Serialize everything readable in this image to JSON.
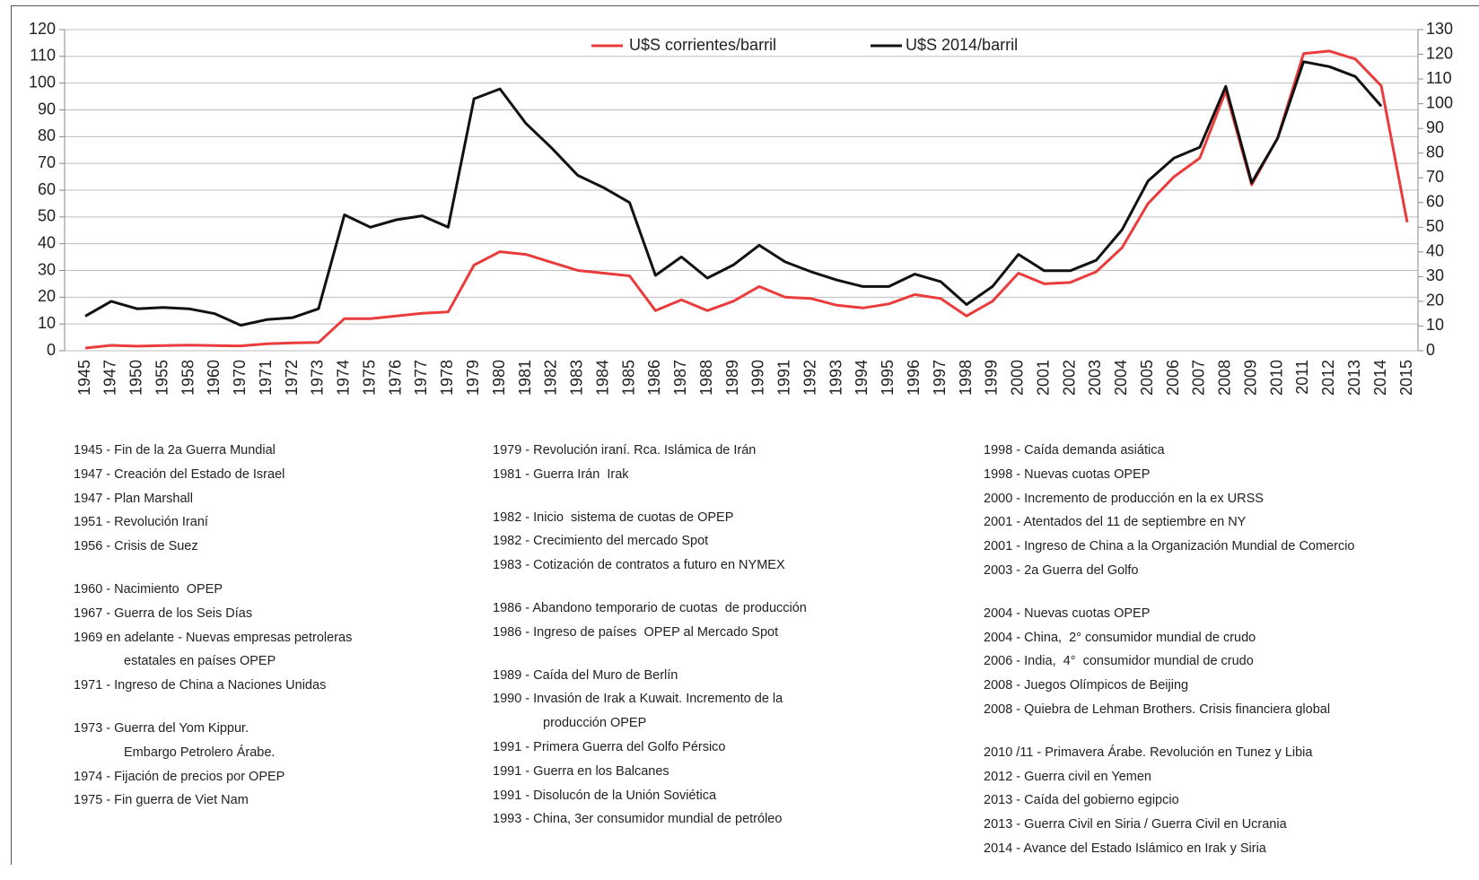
{
  "chart_data": {
    "type": "line",
    "categories": [
      "1945",
      "1947",
      "1950",
      "1955",
      "1958",
      "1960",
      "1970",
      "1971",
      "1972",
      "1973",
      "1974",
      "1975",
      "1976",
      "1977",
      "1978",
      "1979",
      "1980",
      "1981",
      "1982",
      "1983",
      "1984",
      "1985",
      "1986",
      "1987",
      "1988",
      "1989",
      "1990",
      "1991",
      "1992",
      "1993",
      "1994",
      "1995",
      "1996",
      "1997",
      "1998",
      "1999",
      "2000",
      "2001",
      "2002",
      "2003",
      "2004",
      "2005",
      "2006",
      "2007",
      "2008",
      "2009",
      "2010",
      "2011",
      "2012",
      "2013",
      "2014",
      "2015"
    ],
    "series": [
      {
        "name": "U$S corrientes/barril",
        "color": "#ea3c3c",
        "values": [
          1,
          2,
          1.7,
          1.9,
          2.1,
          1.9,
          1.8,
          2.6,
          2.9,
          3.1,
          12,
          12,
          13,
          14,
          14.5,
          32,
          37,
          36,
          33,
          30,
          29,
          28,
          15,
          19,
          15,
          18.5,
          24,
          20,
          19.5,
          17,
          16,
          17.5,
          21,
          19.5,
          13,
          18.5,
          29,
          25,
          25.5,
          29.5,
          38.5,
          55,
          65,
          72,
          97,
          62,
          79.5,
          111,
          112,
          109,
          99,
          48
        ]
      },
      {
        "name": "U$S 2014/barril",
        "color": "#111111",
        "axis": "y2",
        "values": [
          14,
          20,
          17,
          17.5,
          17,
          15,
          10.3,
          12.6,
          13.4,
          17,
          55,
          50,
          53,
          54.6,
          50,
          102,
          106,
          92,
          82,
          71,
          66,
          60,
          30.5,
          38,
          29.4,
          34.7,
          42.7,
          36,
          32,
          28.6,
          26,
          26,
          31,
          28,
          18.7,
          26,
          39,
          32.4,
          32.4,
          36.6,
          49,
          68.7,
          78,
          82.4,
          107,
          68,
          86,
          117,
          115,
          111,
          99,
          null
        ]
      }
    ],
    "ylim": [
      0,
      120
    ],
    "yticks": [
      0,
      10,
      20,
      30,
      40,
      50,
      60,
      70,
      80,
      90,
      100,
      110,
      120
    ],
    "y2lim": [
      0,
      130
    ],
    "y2ticks": [
      0,
      10,
      20,
      30,
      40,
      50,
      60,
      70,
      80,
      90,
      100,
      110,
      120,
      130
    ],
    "grid": true,
    "legend": "top"
  },
  "events": [
    [
      [
        [
          "1945 - Fin de la 2a Guerra Mundial"
        ],
        [
          "1947 - Creación del Estado de Israel"
        ],
        [
          "1947 - Plan Marshall"
        ],
        [
          "1951 - Revolución Iraní"
        ],
        [
          "1956 - Crisis de Suez"
        ]
      ],
      [
        [
          "1960 - Nacimiento  OPEP"
        ],
        [
          "1967 - Guerra de los Seis Días"
        ],
        [
          "1969 en adelante - Nuevas empresas petroleras",
          "estatales en países OPEP"
        ],
        [
          "1971 - Ingreso de China a Naciones Unidas"
        ]
      ],
      [
        [
          "1973 - Guerra del Yom Kippur.",
          "Embargo Petrolero Árabe."
        ],
        [
          "1974 - Fijación de precios por OPEP"
        ],
        [
          "1975 - Fin guerra de Viet Nam"
        ]
      ]
    ],
    [
      [
        [
          "1979 - Revolución iraní. Rca. Islámica de Irán"
        ],
        [
          "1981 - Guerra Irán  Irak"
        ]
      ],
      [
        [
          "1982 - Inicio  sistema de cuotas de OPEP"
        ],
        [
          "1982 - Crecimiento del mercado Spot"
        ],
        [
          "1983 - Cotización de contratos a futuro en NYMEX"
        ]
      ],
      [
        [
          "1986 - Abandono temporario de cuotas  de producción"
        ],
        [
          "1986 - Ingreso de países  OPEP al Mercado Spot"
        ]
      ],
      [
        [
          "1989 - Caída del Muro de Berlín"
        ],
        [
          "1990 - Invasión de Irak a Kuwait. Incremento de la",
          "producción OPEP"
        ],
        [
          "1991 - Primera Guerra del Golfo Pérsico"
        ],
        [
          "1991 - Guerra en los Balcanes"
        ],
        [
          "1991 - Disolucón de la Unión Soviética"
        ],
        [
          "1993 - China, 3er consumidor mundial de petróleo"
        ]
      ]
    ],
    [
      [
        [
          "1998 - Caída demanda asiática"
        ],
        [
          "1998 - Nuevas cuotas OPEP"
        ],
        [
          "2000 - Incremento de producción en la ex URSS"
        ],
        [
          "2001 - Atentados del 11 de septiembre en NY"
        ],
        [
          "2001 - Ingreso de China a la Organización Mundial de Comercio"
        ],
        [
          "2003 - 2a Guerra del Golfo"
        ]
      ],
      [
        [
          "2004 - Nuevas cuotas OPEP"
        ],
        [
          "2004 - China,  2° consumidor mundial de crudo"
        ],
        [
          "2006 - India,  4°  consumidor mundial de crudo"
        ],
        [
          "2008 - Juegos Olímpicos de Beijing"
        ],
        [
          "2008 - Quiebra de Lehman Brothers. Crisis financiera global"
        ]
      ],
      [
        [
          "2010 /11 - Primavera Árabe. Revolución en Tunez y Libia"
        ],
        [
          "2012 - Guerra civil en Yemen"
        ],
        [
          "2013 - Caída del gobierno egipcio"
        ],
        [
          "2013 - Guerra Civil en Siria / Guerra Civil en Ucrania"
        ],
        [
          "2014 - Avance del Estado Islámico en Irak y Siria"
        ]
      ]
    ]
  ]
}
